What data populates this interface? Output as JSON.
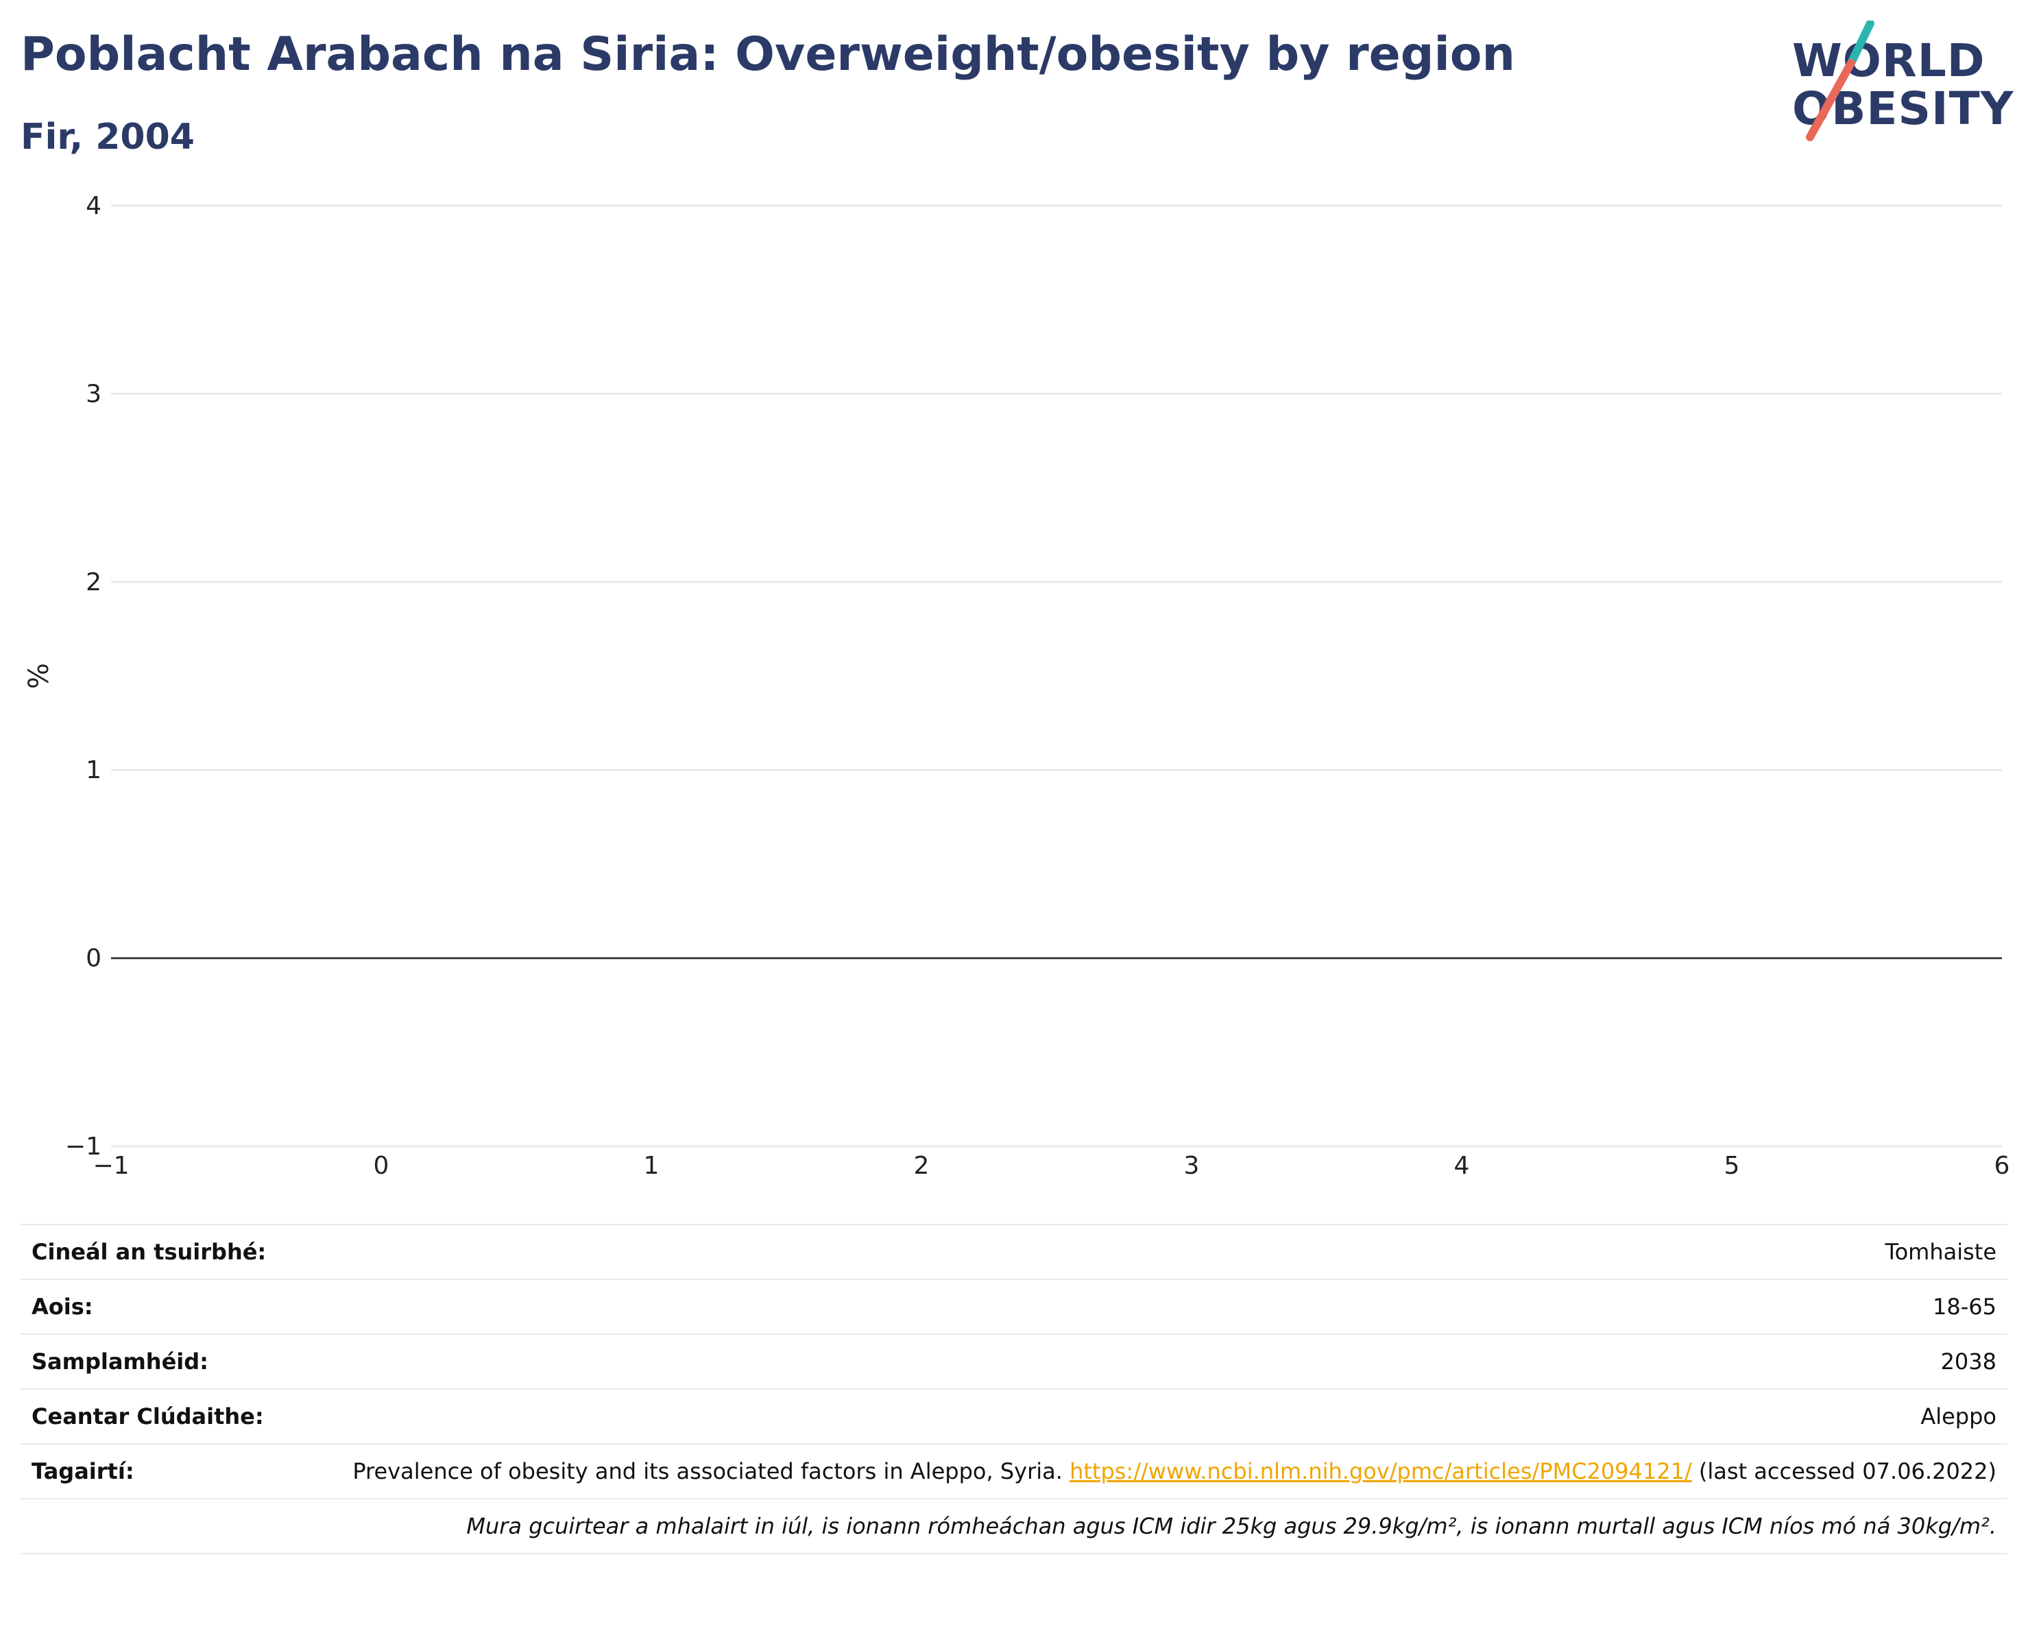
{
  "header": {
    "title": "Poblacht Arabach na Siria: Overweight/obesity by region",
    "subtitle": "Fir, 2004"
  },
  "logo": {
    "line1": "WORLD",
    "line2": "OBESITY",
    "accent_teal": "#2bb5b0",
    "accent_coral": "#e8685a"
  },
  "colors": {
    "title": "#2b3a67",
    "link": "#f0a500",
    "grid": "#e6e9ef",
    "zero_line": "#444444"
  },
  "chart_data": {
    "type": "bar",
    "series": [],
    "title": "",
    "xlabel": "",
    "ylabel": "%",
    "xlim": [
      -1,
      6
    ],
    "ylim": [
      -1,
      4
    ],
    "x_ticks": [
      "−1",
      "0",
      "1",
      "2",
      "3",
      "4",
      "5",
      "6"
    ],
    "y_ticks": [
      "−1",
      "0",
      "1",
      "2",
      "3",
      "4"
    ],
    "grid": true
  },
  "info": {
    "survey_type_label": "Cineál an tsuirbhé:",
    "survey_type_value": "Tomhaiste",
    "age_label": "Aois:",
    "age_value": "18-65",
    "sample_label": "Samplamhéid:",
    "sample_value": "2038",
    "area_label": "Ceantar Clúdaithe:",
    "area_value": "Aleppo",
    "ref_label": "Tagairtí:",
    "ref_text": "Prevalence of obesity and its associated factors in Aleppo, Syria. ",
    "ref_link": "https://www.ncbi.nlm.nih.gov/pmc/articles/PMC2094121/",
    "ref_suffix": " (last accessed 07.06.2022)",
    "note": "Mura gcuirtear a mhalairt in iúl, is ionann rómheáchan agus ICM idir 25kg agus 29.9kg/m², is ionann murtall agus ICM níos mó ná 30kg/m²."
  }
}
